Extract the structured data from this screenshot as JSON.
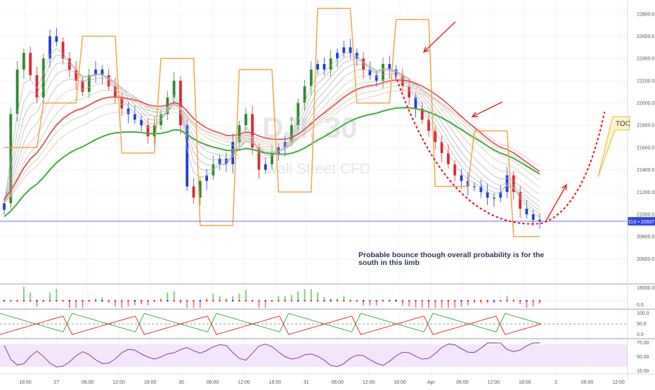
{
  "chart_data": {
    "type": "candlestick",
    "symbol": "DJI",
    "timeframe": "30",
    "watermark_subtitle": "Wall Street CFD",
    "price_axis": {
      "ylim": [
        20400,
        22900
      ],
      "ticks": [
        "22800.0",
        "22600.0",
        "22400.0",
        "22200.0",
        "22000.0",
        "21800.0",
        "21600.0",
        "21400.0",
        "21200.0",
        "21000.0",
        "20800.0",
        "20600.0"
      ]
    },
    "last_price": {
      "label": "DJI",
      "value": "20937.5"
    },
    "time_axis": {
      "ticks": [
        "18:00",
        "27",
        "06:00",
        "12:00",
        "18:00",
        "30",
        "06:00",
        "12:00",
        "18:00",
        "31",
        "06:00",
        "12:00",
        "18:00",
        "Apr",
        "06:00",
        "12:00",
        "18:00",
        "2",
        "06:00",
        "12:00"
      ]
    },
    "series_close": [
      21100,
      21900,
      22300,
      22450,
      22250,
      22050,
      22400,
      22600,
      22550,
      22400,
      22300,
      22200,
      22100,
      22250,
      22300,
      22250,
      22150,
      22050,
      21950,
      21900,
      21850,
      21800,
      21700,
      21800,
      21900,
      22050,
      22200,
      21800,
      21250,
      21150,
      21300,
      21350,
      21450,
      21500,
      21450,
      21650,
      21800,
      21900,
      21600,
      21400,
      21450,
      21550,
      21600,
      21650,
      21800,
      22000,
      22150,
      22300,
      22350,
      22300,
      22400,
      22450,
      22500,
      22450,
      22400,
      22300,
      22250,
      22200,
      22350,
      22300,
      22250,
      22150,
      22050,
      21950,
      21850,
      21750,
      21650,
      21550,
      21450,
      21350,
      21300,
      21250,
      21250,
      21200,
      21150,
      21150,
      21200,
      21350,
      21200,
      21050,
      21000,
      20950,
      20937.5
    ],
    "annotations": {
      "note": "Probable bounce though overall probability is for the south in this limb",
      "label_box": "TOC"
    },
    "panels": [
      {
        "name": "histogram",
        "ticks": [
          "18000.0",
          "0.0"
        ]
      },
      {
        "name": "oscillator",
        "ticks": [
          "100.0",
          "50.0",
          "0.0"
        ]
      },
      {
        "name": "rsi",
        "ticks": [
          "75.00",
          "50.00",
          "15.00"
        ]
      }
    ],
    "colors": {
      "bull": "#2e8b2e",
      "bear": "#e0282e",
      "doji": "#1f3fd6",
      "orange": "#f3a54a",
      "ribbon_green": "#3fae3a",
      "ribbon_red": "#e0474c",
      "annotation_red": "#e02020",
      "toc_fill": "#fff6c8",
      "price_line": "#3344ee",
      "rsi_line": "#7b2e6e",
      "rsi_band": "#f3e6fb"
    }
  }
}
